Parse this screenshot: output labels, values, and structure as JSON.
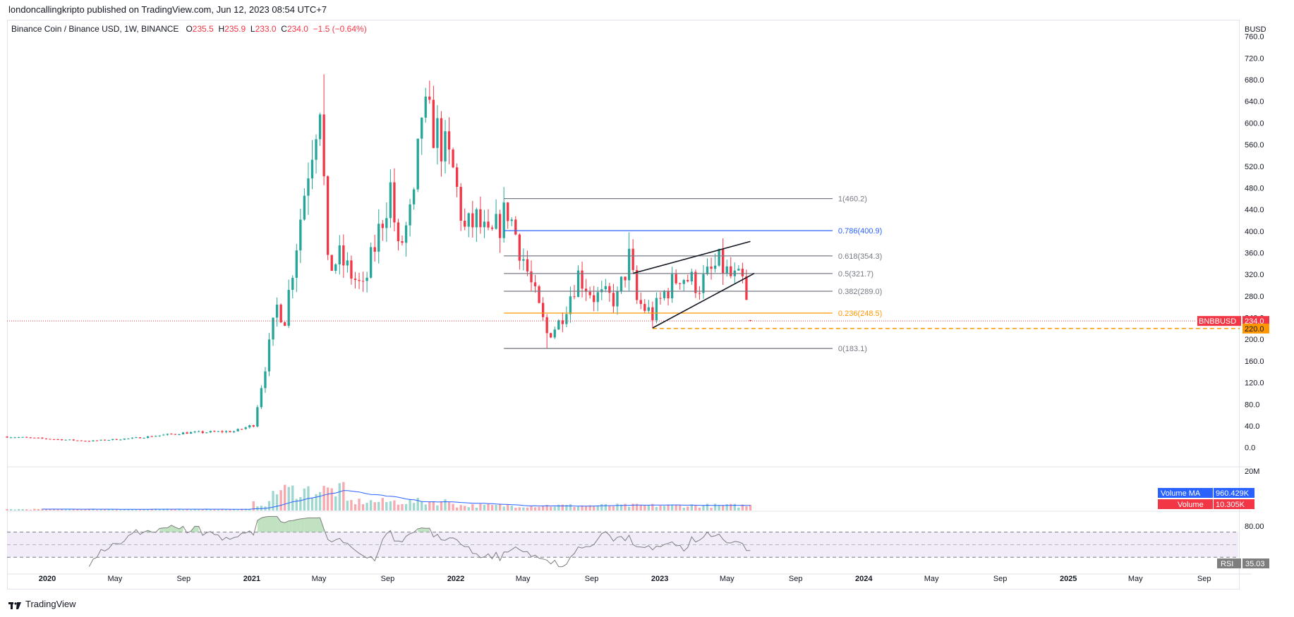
{
  "header": {
    "published": "londoncallingkripto published on TradingView.com, Jun 12, 2023 08:54 UTC+7"
  },
  "legend": {
    "symbol": "Binance Coin / Binance USD, 1W, BINANCE",
    "o_label": "O",
    "o_value": "235.5",
    "h_label": "H",
    "h_value": "235.9",
    "l_label": "L",
    "l_value": "233.0",
    "c_label": "C",
    "c_value": "234.0",
    "change": "−1.5 (−0.64%)"
  },
  "footer": {
    "brand": "TradingView"
  },
  "colors": {
    "up": "#26a69a",
    "down": "#f23645",
    "fib_gray": "#787b86",
    "fib_blue": "#2962ff",
    "fib_orange": "#ff9800",
    "volume_ma": "#2962ff",
    "rsi_line": "#7e7e7e",
    "rsi_band": "#ede7f6"
  },
  "chart_data": [
    {
      "type": "candlestick",
      "title": "Binance Coin / Binance USD",
      "interval": "1W",
      "exchange": "BINANCE",
      "price_axis_unit": "BUSD",
      "ylim": [
        -20,
        770
      ],
      "y_ticks": [
        0,
        40,
        80,
        120,
        160,
        200,
        240,
        280,
        320,
        360,
        400,
        440,
        480,
        520,
        560,
        600,
        640,
        680,
        720,
        760
      ],
      "y_tick_labels": [
        "0.0",
        "40.0",
        "80.0",
        "120.0",
        "160.0",
        "200.0",
        "240.0",
        "280.0",
        "320.0",
        "360.0",
        "400.0",
        "440.0",
        "480.0",
        "520.0",
        "560.0",
        "600.0",
        "640.0",
        "680.0",
        "720.0",
        "760.0"
      ],
      "x_range": [
        "2019-10-21",
        "2025-11-01"
      ],
      "x_ticks": [
        {
          "date": "2020-01-01",
          "label": "2020"
        },
        {
          "date": "2020-05-01",
          "label": "May"
        },
        {
          "date": "2020-09-01",
          "label": "Sep"
        },
        {
          "date": "2021-01-01",
          "label": "2021"
        },
        {
          "date": "2021-05-01",
          "label": "May"
        },
        {
          "date": "2021-09-01",
          "label": "Sep"
        },
        {
          "date": "2022-01-01",
          "label": "2022"
        },
        {
          "date": "2022-05-01",
          "label": "May"
        },
        {
          "date": "2022-09-01",
          "label": "Sep"
        },
        {
          "date": "2023-01-01",
          "label": "2023"
        },
        {
          "date": "2023-05-01",
          "label": "May"
        },
        {
          "date": "2023-09-01",
          "label": "Sep"
        },
        {
          "date": "2024-01-01",
          "label": "2024"
        },
        {
          "date": "2024-05-01",
          "label": "May"
        },
        {
          "date": "2024-09-01",
          "label": "Sep"
        },
        {
          "date": "2025-01-01",
          "label": "2025"
        },
        {
          "date": "2025-05-01",
          "label": "May"
        },
        {
          "date": "2025-09-01",
          "label": "Sep"
        }
      ],
      "price_path_keypoints": [
        {
          "date": "2019-10-21",
          "price": 20
        },
        {
          "date": "2020-03-16",
          "price": 12
        },
        {
          "date": "2020-06-01",
          "price": 17
        },
        {
          "date": "2020-09-01",
          "price": 27
        },
        {
          "date": "2020-12-01",
          "price": 30
        },
        {
          "date": "2021-01-04",
          "price": 42
        },
        {
          "date": "2021-02-15",
          "price": 260
        },
        {
          "date": "2021-03-01",
          "price": 240
        },
        {
          "date": "2021-04-12",
          "price": 520
        },
        {
          "date": "2021-05-03",
          "price": 650
        },
        {
          "date": "2021-05-17",
          "price": 330
        },
        {
          "date": "2021-06-07",
          "price": 350
        },
        {
          "date": "2021-07-19",
          "price": 290
        },
        {
          "date": "2021-09-06",
          "price": 480
        },
        {
          "date": "2021-09-20",
          "price": 360
        },
        {
          "date": "2021-10-18",
          "price": 450
        },
        {
          "date": "2021-11-01",
          "price": 620
        },
        {
          "date": "2021-11-29",
          "price": 580
        },
        {
          "date": "2021-12-27",
          "price": 510
        },
        {
          "date": "2022-01-17",
          "price": 400
        },
        {
          "date": "2022-02-07",
          "price": 420
        },
        {
          "date": "2022-03-01",
          "price": 380
        },
        {
          "date": "2022-04-04",
          "price": 440
        },
        {
          "date": "2022-05-02",
          "price": 350
        },
        {
          "date": "2022-05-16",
          "price": 300
        },
        {
          "date": "2022-06-13",
          "price": 210
        },
        {
          "date": "2022-07-04",
          "price": 230
        },
        {
          "date": "2022-08-08",
          "price": 320
        },
        {
          "date": "2022-09-05",
          "price": 280
        },
        {
          "date": "2022-10-17",
          "price": 275
        },
        {
          "date": "2022-11-07",
          "price": 350
        },
        {
          "date": "2022-11-21",
          "price": 270
        },
        {
          "date": "2022-12-19",
          "price": 245
        },
        {
          "date": "2023-01-09",
          "price": 285
        },
        {
          "date": "2023-02-06",
          "price": 320
        },
        {
          "date": "2023-03-13",
          "price": 300
        },
        {
          "date": "2023-04-17",
          "price": 340
        },
        {
          "date": "2023-05-08",
          "price": 315
        },
        {
          "date": "2023-05-29",
          "price": 305
        },
        {
          "date": "2023-06-05",
          "price": 265
        },
        {
          "date": "2023-06-12",
          "price": 234
        }
      ],
      "wick_extremes": [
        {
          "date": "2021-05-10",
          "price": 690
        },
        {
          "date": "2021-11-08",
          "price": 665
        },
        {
          "date": "2022-06-13",
          "price": 183
        },
        {
          "date": "2022-11-07",
          "price": 398
        },
        {
          "date": "2022-12-19",
          "price": 221
        }
      ],
      "last_price": 234.0,
      "last_price_label": "BNBBUSD",
      "last_price_text": "234.0",
      "marked_level": 220.0,
      "marked_level_text": "220.0",
      "fibonacci": [
        {
          "ratio": "1",
          "price": 460.2,
          "label": "1(460.2)",
          "color": "#787b86"
        },
        {
          "ratio": "0.786",
          "price": 400.9,
          "label": "0.786(400.9)",
          "color": "#2962ff"
        },
        {
          "ratio": "0.618",
          "price": 354.3,
          "label": "0.618(354.3)",
          "color": "#787b86"
        },
        {
          "ratio": "0.5",
          "price": 321.7,
          "label": "0.5(321.7)",
          "color": "#787b86"
        },
        {
          "ratio": "0.382",
          "price": 289.0,
          "label": "0.382(289.0)",
          "color": "#787b86"
        },
        {
          "ratio": "0.236",
          "price": 248.5,
          "label": "0.236(248.5)",
          "color": "#ff9800"
        },
        {
          "ratio": "0",
          "price": 183.1,
          "label": "0(183.1)",
          "color": "#787b86"
        }
      ],
      "fib_span": [
        "2022-03-28",
        "2023-11-06"
      ],
      "wedge_lines": [
        {
          "from": {
            "date": "2022-12-19",
            "price": 221
          },
          "to": {
            "date": "2023-06-19",
            "price": 322
          }
        },
        {
          "from": {
            "date": "2022-11-14",
            "price": 322
          },
          "to": {
            "date": "2023-06-12",
            "price": 381
          }
        }
      ]
    },
    {
      "type": "bar",
      "title": "Volume",
      "y_tick_label": "20M",
      "ma_label": "Volume MA",
      "ma_value": "960.429K",
      "volume_label": "Volume",
      "volume_value": "10.305K"
    },
    {
      "type": "line",
      "title": "RSI",
      "y_tick_label": "80.00",
      "band": [
        30,
        70
      ],
      "value_label": "RSI",
      "value": "35.03"
    }
  ]
}
